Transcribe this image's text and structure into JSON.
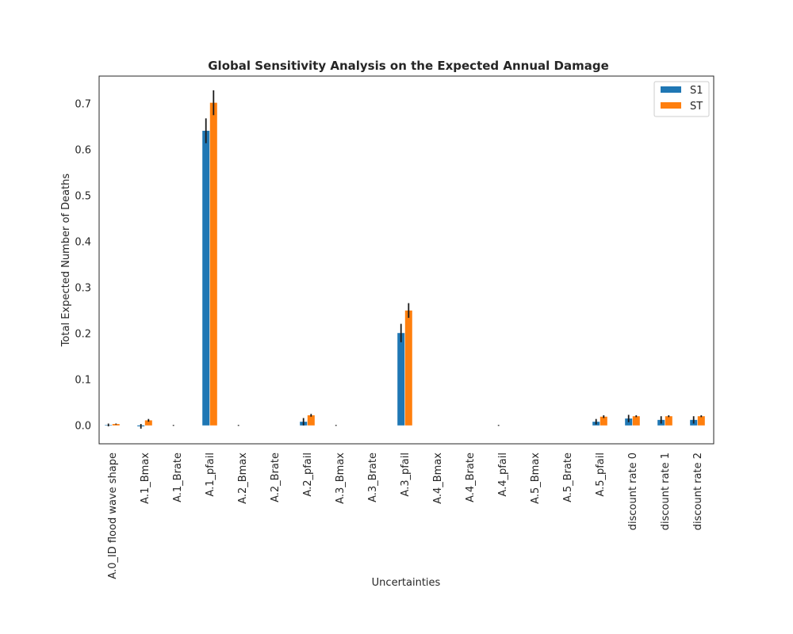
{
  "chart_data": {
    "type": "bar",
    "title": "Global Sensitivity Analysis on the Expected Annual Damage",
    "xlabel": "Uncertainties",
    "ylabel": "Total Expected Number of Deaths",
    "ylim": [
      -0.04,
      0.76
    ],
    "yticks": [
      "0.0",
      "0.1",
      "0.2",
      "0.3",
      "0.4",
      "0.5",
      "0.6",
      "0.7"
    ],
    "grid": false,
    "legend_position": "top-right",
    "categories": [
      "A.0_ID flood wave shape",
      "A.1_Bmax",
      "A.1_Brate",
      "A.1_pfail",
      "A.2_Bmax",
      "A.2_Brate",
      "A.2_pfail",
      "A.3_Bmax",
      "A.3_Brate",
      "A.3_pfail",
      "A.4_Bmax",
      "A.4_Brate",
      "A.4_pfail",
      "A.5_Bmax",
      "A.5_Brate",
      "A.5_pfail",
      "discount rate 0",
      "discount rate 1",
      "discount rate 2"
    ],
    "series": [
      {
        "name": "S1",
        "color": "#1f77b4",
        "values": [
          0.001,
          -0.002,
          0.0,
          0.641,
          0.0,
          0.0,
          0.008,
          0.0,
          0.0,
          0.201,
          0.0,
          0.0,
          0.0,
          0.0,
          0.0,
          0.008,
          0.015,
          0.012,
          0.012
        ],
        "errors": [
          0.003,
          0.005,
          0.001,
          0.027,
          0.001,
          0.0,
          0.008,
          0.001,
          0.0,
          0.02,
          0.0,
          0.0,
          0.001,
          0.0,
          0.0,
          0.006,
          0.008,
          0.008,
          0.008
        ]
      },
      {
        "name": "ST",
        "color": "#ff7f0e",
        "values": [
          0.003,
          0.011,
          0.0,
          0.702,
          0.0,
          0.0,
          0.022,
          0.0,
          0.0,
          0.25,
          0.0,
          0.0,
          0.0,
          0.0,
          0.0,
          0.019,
          0.02,
          0.02,
          0.02
        ],
        "errors": [
          0.001,
          0.003,
          0.0,
          0.027,
          0.0,
          0.0,
          0.003,
          0.0,
          0.0,
          0.016,
          0.0,
          0.0,
          0.0,
          0.0,
          0.0,
          0.003,
          0.002,
          0.002,
          0.002
        ]
      }
    ]
  }
}
